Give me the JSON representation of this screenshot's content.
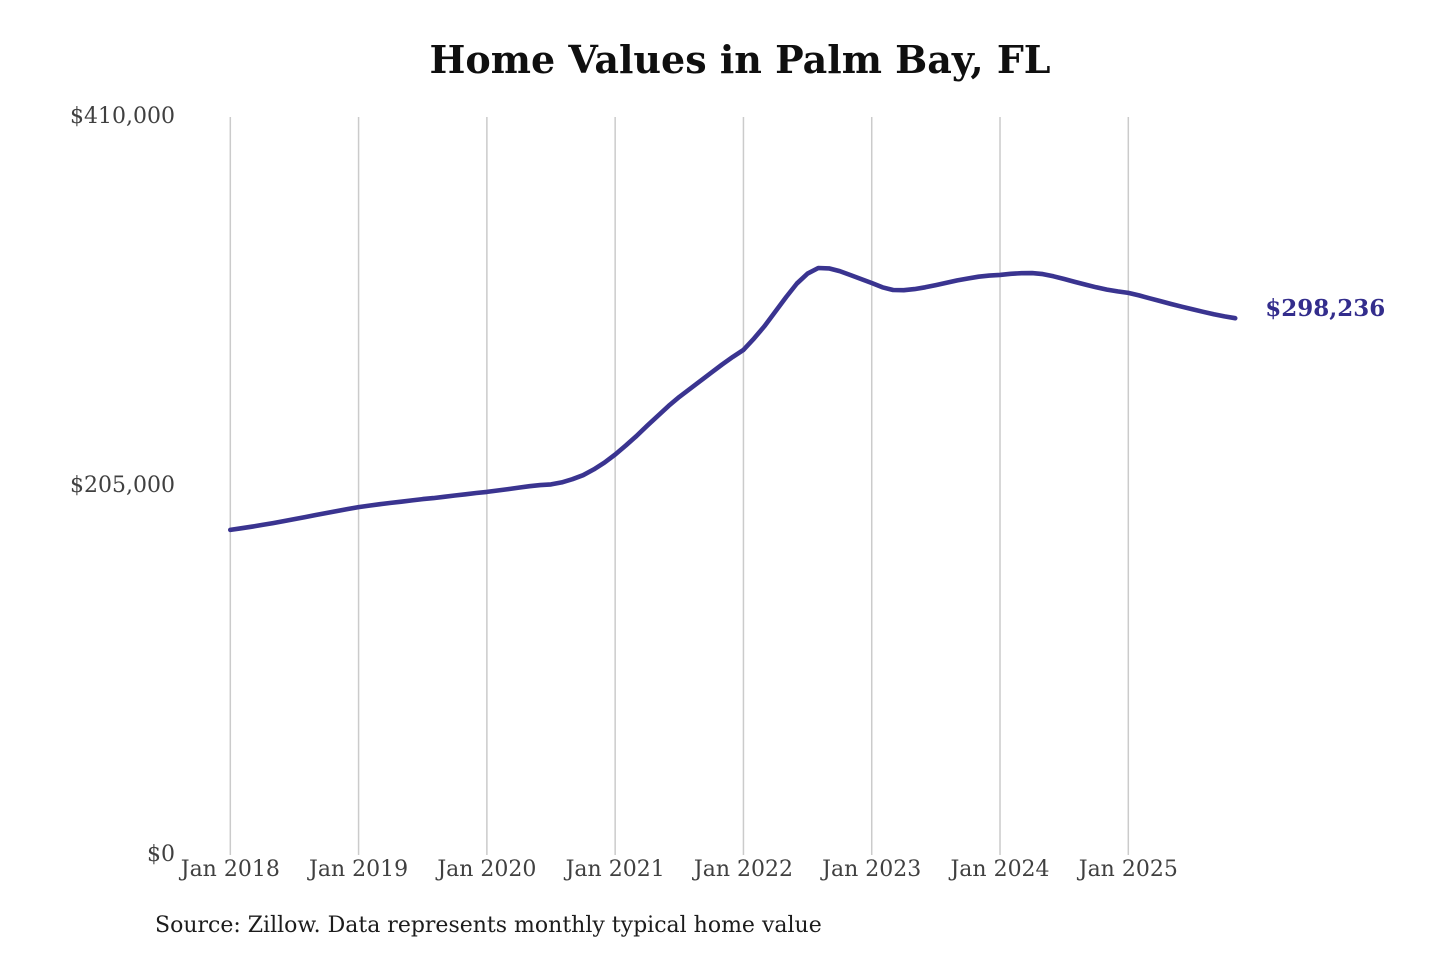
{
  "page": {
    "background": "#ffffff"
  },
  "chart_data": {
    "type": "line",
    "title": "Home Values in Palm Bay, FL",
    "source_note": "Source: Zillow. Data represents monthly typical home value",
    "xlabel": "",
    "ylabel": "",
    "ylim": [
      0,
      410000
    ],
    "grid": "vertical-gridlines-only",
    "legend": "none",
    "x_tick_labels": [
      "Jan 2018",
      "Jan 2019",
      "Jan 2020",
      "Jan 2021",
      "Jan 2022",
      "Jan 2023",
      "Jan 2024",
      "Jan 2025"
    ],
    "x_tick_month_index": [
      0,
      12,
      24,
      36,
      48,
      60,
      72,
      84
    ],
    "y_ticks": [
      {
        "label": "$410,000",
        "value": 410000
      },
      {
        "label": "$205,000",
        "value": 205000
      },
      {
        "label": "$0",
        "value": 0
      }
    ],
    "series": [
      {
        "name": "Monthly typical home value",
        "color": "#3a3490",
        "frequency": "monthly",
        "start": "2018-01",
        "end": "2025-11",
        "values": [
          180600,
          181500,
          182400,
          183400,
          184400,
          185500,
          186600,
          187700,
          188900,
          190000,
          191100,
          192200,
          193300,
          194100,
          194900,
          195600,
          196300,
          197000,
          197700,
          198300,
          199000,
          199700,
          200400,
          201100,
          201700,
          202500,
          203300,
          204100,
          204900,
          205500,
          205900,
          207000,
          208800,
          211000,
          214200,
          218000,
          222500,
          227500,
          232800,
          238500,
          244000,
          249500,
          254500,
          259000,
          263500,
          268000,
          272500,
          276700,
          280600,
          287000,
          294000,
          302000,
          310000,
          317500,
          323000,
          326100,
          325900,
          324400,
          322200,
          320000,
          317800,
          315400,
          313900,
          313800,
          314400,
          315400,
          316600,
          317900,
          319200,
          320300,
          321300,
          321900,
          322300,
          322900,
          323200,
          323300,
          322700,
          321500,
          320000,
          318400,
          316900,
          315400,
          314100,
          313100,
          312300,
          310900,
          309300,
          307700,
          306100,
          304600,
          303200,
          301800,
          300400,
          299200,
          298236
        ]
      }
    ],
    "annotation": {
      "text": "$298,236",
      "value": 298236,
      "color": "#332d8c"
    },
    "colors": {
      "line": "#3a3490",
      "gridline": "#cbcbcb",
      "tick_text": "#404040",
      "title_text": "#0f0f0f",
      "source_text": "#1c1c1c",
      "background": "#ffffff"
    }
  }
}
